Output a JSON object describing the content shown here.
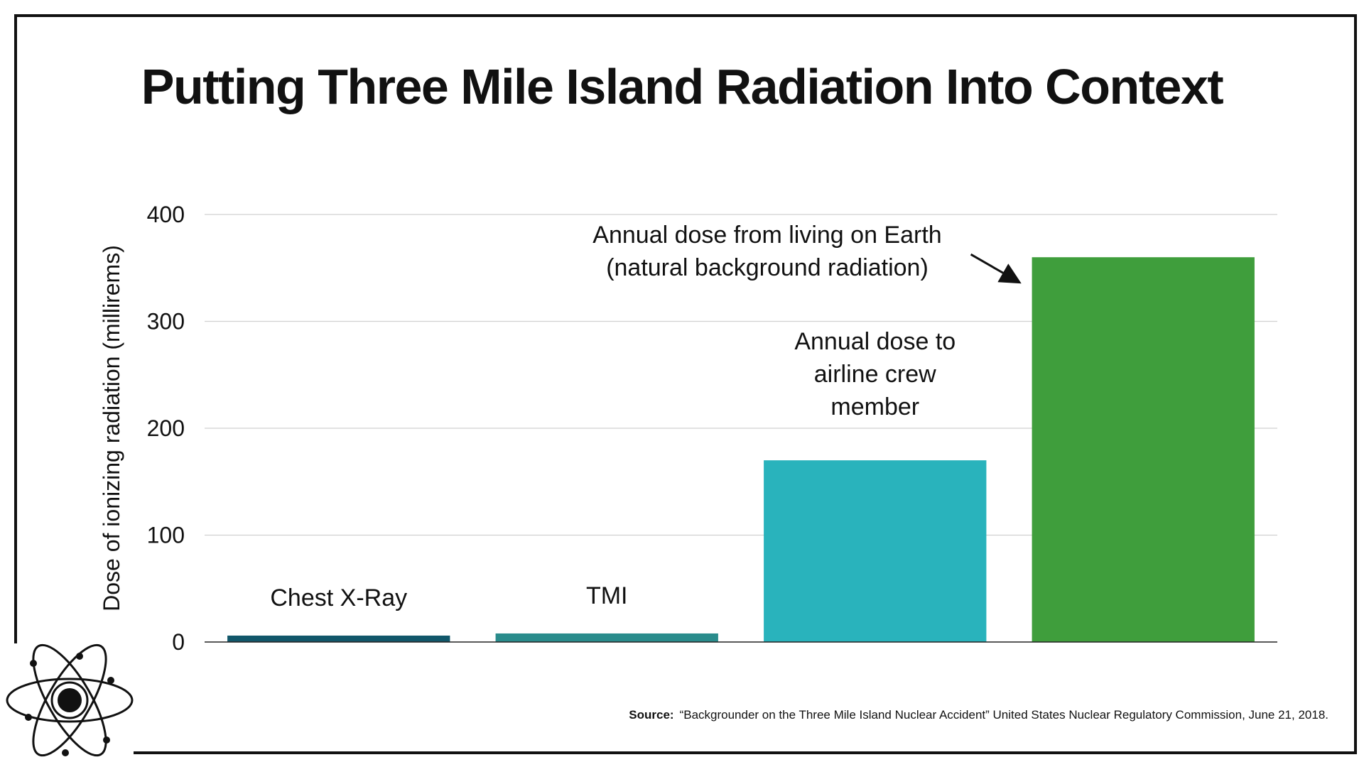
{
  "chart_data": {
    "type": "bar",
    "title": "Putting Three Mile Island Radiation Into Context",
    "ylabel": "Dose of ionizing radiation (millirems)",
    "xlabel": "",
    "ylim": [
      0,
      400
    ],
    "yticks": [
      "0",
      "100",
      "200",
      "300",
      "400"
    ],
    "grid": true,
    "categories": [
      "Chest X-Ray",
      "TMI",
      "",
      ""
    ],
    "values": [
      6,
      8,
      170,
      360
    ],
    "colors": [
      "#11576a",
      "#2a8c8c",
      "#29b3bc",
      "#3f9e3c"
    ],
    "annotations": [
      {
        "lines": [
          "Annual dose from living on Earth",
          "(natural background radiation)"
        ],
        "bar": 3,
        "arrow": true
      },
      {
        "lines": [
          "Annual dose to",
          "airline crew",
          "member"
        ],
        "bar": 2,
        "arrow": false
      }
    ]
  },
  "source": {
    "label": "Source:",
    "text": "“Backgrounder on the Three Mile Island Nuclear Accident” United States Nuclear Regulatory Commission, June 21, 2018."
  },
  "logo": {
    "icon": "atom-icon"
  }
}
